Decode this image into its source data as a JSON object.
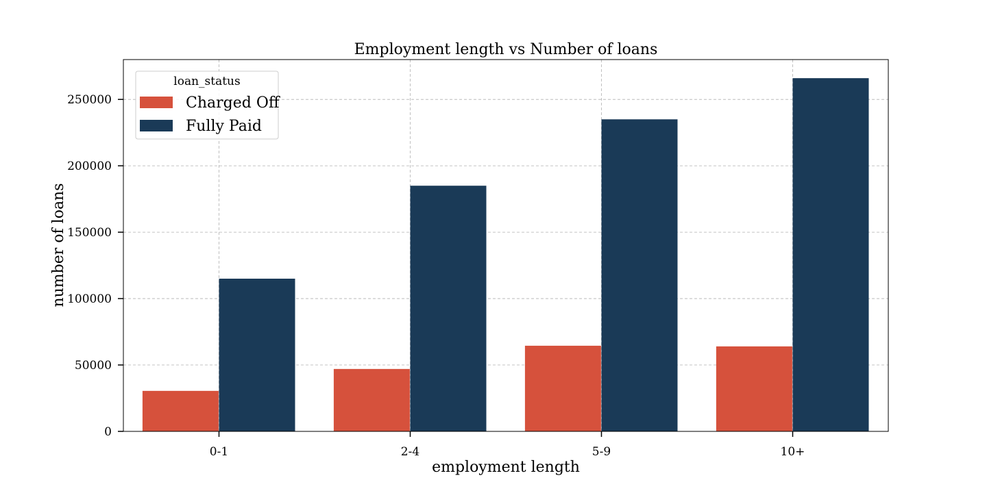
{
  "chart_data": {
    "type": "bar",
    "title": "Employment length vs Number of loans",
    "xlabel": "employment length",
    "ylabel": "number of loans",
    "categories": [
      "0-1",
      "2-4",
      "5-9",
      "10+"
    ],
    "series": [
      {
        "name": "Charged Off",
        "color": "#d6513c",
        "values": [
          30500,
          47000,
          64500,
          64000
        ]
      },
      {
        "name": "Fully Paid",
        "color": "#1a3a57",
        "values": [
          115000,
          185000,
          235000,
          266000
        ]
      }
    ],
    "ylim": [
      0,
      280000
    ],
    "yticks": [
      0,
      50000,
      100000,
      150000,
      200000,
      250000
    ],
    "ytick_labels": [
      "0",
      "50000",
      "100000",
      "150000",
      "200000",
      "250000"
    ],
    "grid": true,
    "legend": {
      "title": "loan_status",
      "placement": "top-left"
    }
  }
}
